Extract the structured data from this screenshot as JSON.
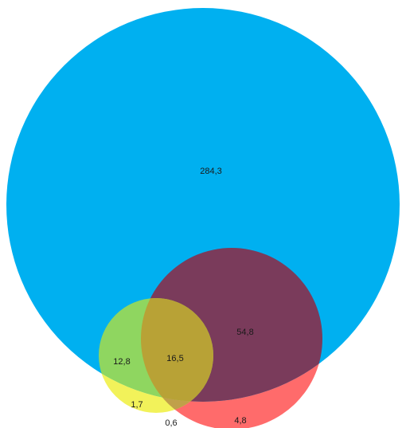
{
  "colors": {
    "background": "#ffffff",
    "set_large": "#00b0f0",
    "set_medium": "#7a3b5b",
    "set_medium_outside": "#ff6b6b",
    "set_small": "#8fd660",
    "set_small_outside": "#f2f25a",
    "overlap_small_medium": "#b8a236",
    "overlap_small_medium_outside": "#c0a04a",
    "label_text": "#1a1a1a"
  },
  "regions": {
    "large_only": {
      "label": "284,3"
    },
    "medium_in_large": {
      "label": "54,8"
    },
    "small_in_large": {
      "label": "12,8"
    },
    "small_medium_in_large": {
      "label": "16,5"
    },
    "small_outside": {
      "label": "1,7"
    },
    "small_medium_outside": {
      "label": "0,6"
    },
    "medium_outside": {
      "label": "4,8"
    }
  }
}
